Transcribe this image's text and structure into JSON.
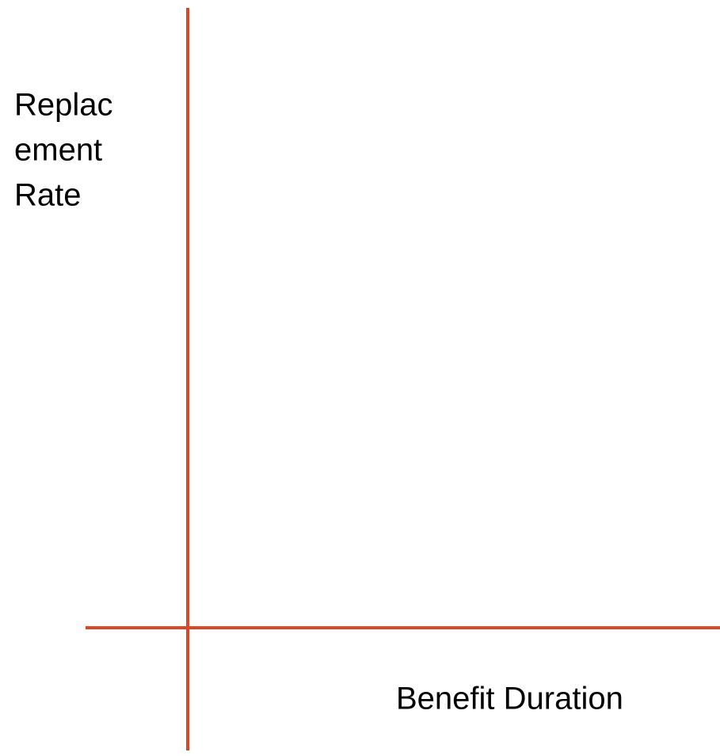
{
  "y_axis": {
    "label_lines": [
      "Replac",
      "ement",
      "Rate"
    ]
  },
  "x_axis": {
    "label": "Benefit Duration"
  }
}
